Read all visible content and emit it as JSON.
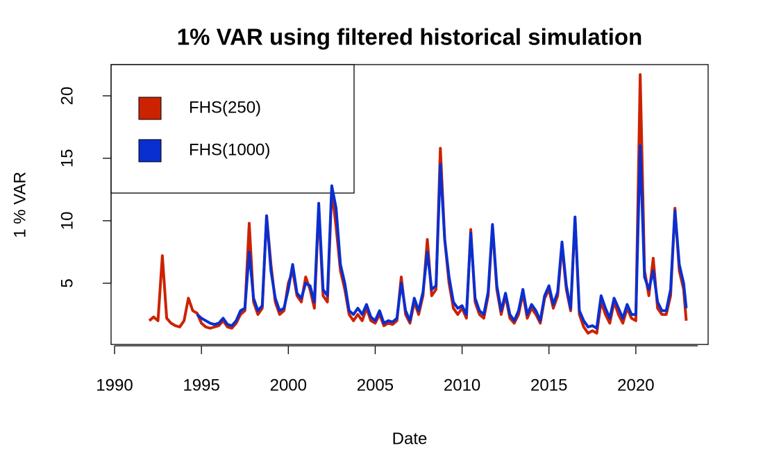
{
  "chart_data": {
    "type": "line",
    "title": "1% VAR using filtered historical simulation",
    "x_label": "Date",
    "y_label": "1 % VAR",
    "xlim": [
      1989.8,
      2024.16
    ],
    "ylim": [
      0.1,
      22.5
    ],
    "xticks": [
      1990,
      1995,
      2000,
      2005,
      2010,
      2015,
      2020
    ],
    "yticks": [
      5,
      10,
      15,
      20
    ],
    "legend": "top-left",
    "x": [
      1992,
      1992.25,
      1992.5,
      1992.75,
      1993,
      1993.25,
      1993.5,
      1993.75,
      1994,
      1994.25,
      1994.5,
      1994.75,
      1995,
      1995.25,
      1995.5,
      1995.75,
      1996,
      1996.25,
      1996.5,
      1996.75,
      1997,
      1997.25,
      1997.5,
      1997.75,
      1998,
      1998.25,
      1998.5,
      1998.75,
      1999,
      1999.25,
      1999.5,
      1999.75,
      2000,
      2000.25,
      2000.5,
      2000.75,
      2001,
      2001.25,
      2001.5,
      2001.75,
      2002,
      2002.25,
      2002.5,
      2002.75,
      2003,
      2003.25,
      2003.5,
      2003.75,
      2004,
      2004.25,
      2004.5,
      2004.75,
      2005,
      2005.25,
      2005.5,
      2005.75,
      2006,
      2006.25,
      2006.5,
      2006.75,
      2007,
      2007.25,
      2007.5,
      2007.75,
      2008,
      2008.25,
      2008.5,
      2008.75,
      2009,
      2009.25,
      2009.5,
      2009.75,
      2010,
      2010.25,
      2010.5,
      2010.75,
      2011,
      2011.25,
      2011.5,
      2011.75,
      2012,
      2012.25,
      2012.5,
      2012.75,
      2013,
      2013.25,
      2013.5,
      2013.75,
      2014,
      2014.25,
      2014.5,
      2014.75,
      2015,
      2015.25,
      2015.5,
      2015.75,
      2016,
      2016.25,
      2016.5,
      2016.75,
      2017,
      2017.25,
      2017.5,
      2017.75,
      2018,
      2018.25,
      2018.5,
      2018.75,
      2019,
      2019.25,
      2019.5,
      2019.75,
      2020,
      2020.25,
      2020.5,
      2020.75,
      2021,
      2021.25,
      2021.5,
      2021.75,
      2022,
      2022.25,
      2022.5,
      2022.75,
      2022.9
    ],
    "series": [
      {
        "name": "FHS(250)",
        "color": "#cc2200",
        "values": [
          2.0,
          2.3,
          2.0,
          7.2,
          2.2,
          1.8,
          1.6,
          1.5,
          2.0,
          3.8,
          2.8,
          2.6,
          1.8,
          1.5,
          1.4,
          1.5,
          1.6,
          2.0,
          1.5,
          1.4,
          1.8,
          2.5,
          2.8,
          9.8,
          3.5,
          2.5,
          3.0,
          10.4,
          6.5,
          3.5,
          2.5,
          2.8,
          5.0,
          6.0,
          4.0,
          3.5,
          5.5,
          4.5,
          3.0,
          11.0,
          4.0,
          3.5,
          12.5,
          9.5,
          6.0,
          4.5,
          2.5,
          2.0,
          2.5,
          2.0,
          3.0,
          2.0,
          1.8,
          2.5,
          1.6,
          1.8,
          1.7,
          2.0,
          5.5,
          2.5,
          1.8,
          3.5,
          2.5,
          4.0,
          8.5,
          4.0,
          4.5,
          15.8,
          8.5,
          5.0,
          3.0,
          2.5,
          3.0,
          2.2,
          9.3,
          3.5,
          2.5,
          2.2,
          4.0,
          9.6,
          4.5,
          2.5,
          4.0,
          2.2,
          1.8,
          2.5,
          4.2,
          2.2,
          3.0,
          2.5,
          1.8,
          3.8,
          4.5,
          3.0,
          4.0,
          8.0,
          4.5,
          2.8,
          10.2,
          2.5,
          1.5,
          1.0,
          1.2,
          1.0,
          3.5,
          2.5,
          1.8,
          3.5,
          2.5,
          1.8,
          3.0,
          2.2,
          2.0,
          21.7,
          6.0,
          4.0,
          7.0,
          3.0,
          2.5,
          2.5,
          4.0,
          11.0,
          6.0,
          4.5,
          2.0
        ]
      },
      {
        "name": "FHS(1000)",
        "color": "#0a2fd0",
        "values": [
          null,
          null,
          null,
          null,
          null,
          null,
          null,
          null,
          null,
          null,
          null,
          2.5,
          2.2,
          2.0,
          1.8,
          1.7,
          1.8,
          2.2,
          1.7,
          1.6,
          2.0,
          2.8,
          3.0,
          7.5,
          3.8,
          2.8,
          3.2,
          10.4,
          6.0,
          3.8,
          2.8,
          3.0,
          4.5,
          6.5,
          4.2,
          3.8,
          5.0,
          4.8,
          3.5,
          11.4,
          4.5,
          4.0,
          12.8,
          11.0,
          6.5,
          5.0,
          2.8,
          2.5,
          3.0,
          2.5,
          3.3,
          2.3,
          2.0,
          2.8,
          1.8,
          2.0,
          1.9,
          2.2,
          5.0,
          2.8,
          2.0,
          3.8,
          2.8,
          4.3,
          7.5,
          4.5,
          4.8,
          14.5,
          8.5,
          5.5,
          3.5,
          3.0,
          3.2,
          2.5,
          9.0,
          3.8,
          2.8,
          2.5,
          4.3,
          9.7,
          4.8,
          2.8,
          4.2,
          2.5,
          2.0,
          2.8,
          4.5,
          2.5,
          3.3,
          2.8,
          2.0,
          4.0,
          4.8,
          3.3,
          4.3,
          8.3,
          4.8,
          3.0,
          10.3,
          2.8,
          2.0,
          1.5,
          1.6,
          1.4,
          4.0,
          3.0,
          2.2,
          3.8,
          3.0,
          2.2,
          3.3,
          2.5,
          2.5,
          16.0,
          5.5,
          4.5,
          6.0,
          3.5,
          2.8,
          2.8,
          4.5,
          10.8,
          6.5,
          5.0,
          3.0
        ]
      }
    ]
  }
}
